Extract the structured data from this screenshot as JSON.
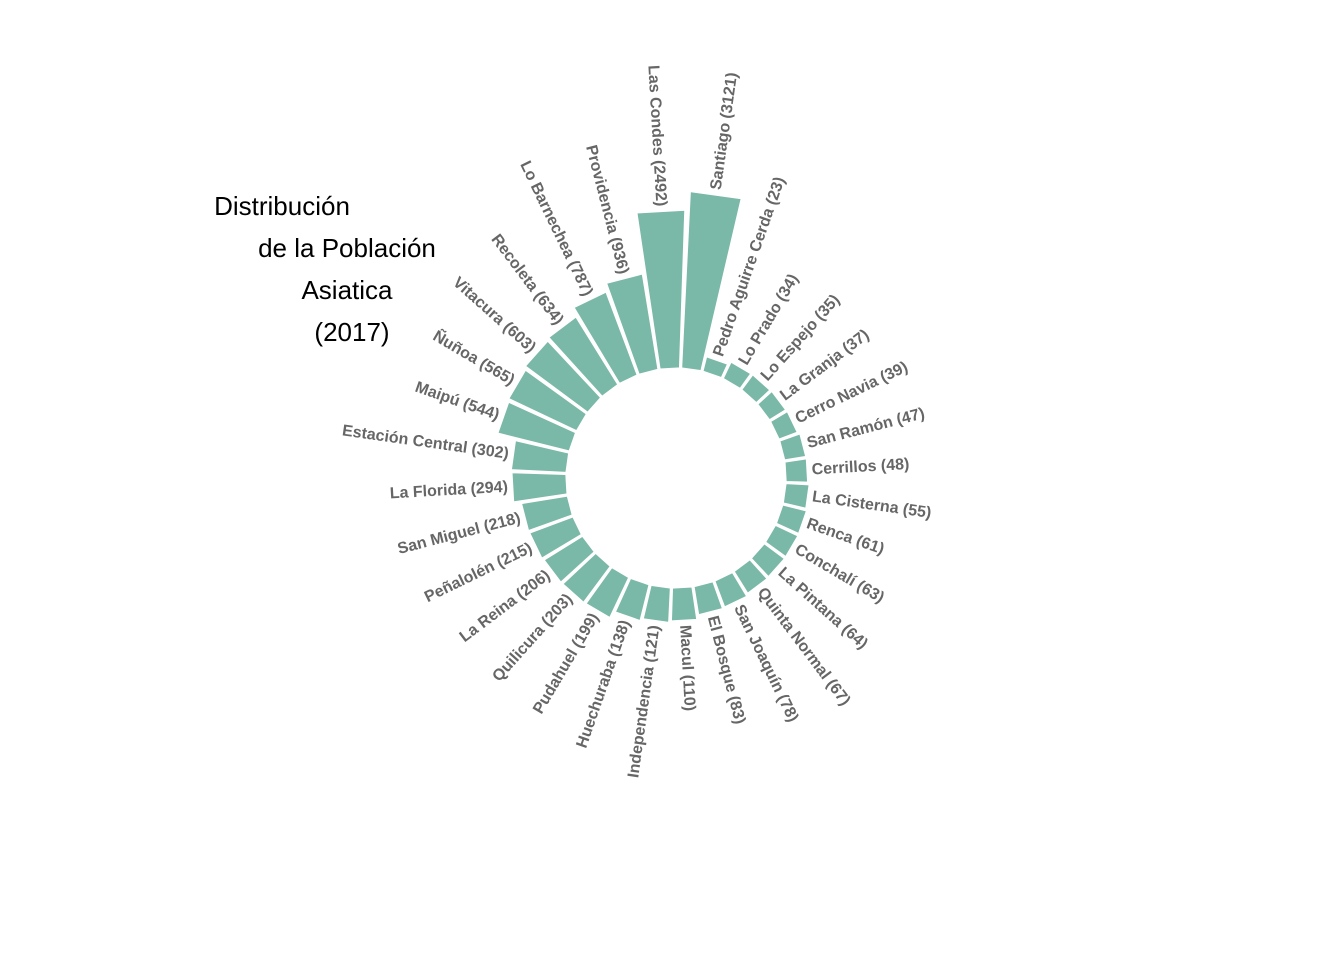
{
  "title_lines": [
    "Distribución",
    "de la Población",
    "Asiatica",
    "(2017)"
  ],
  "colors": {
    "bar": "#7ab8a8",
    "label": "#666666",
    "title": "#000000"
  },
  "chart_data": {
    "type": "bar",
    "layout": "circular",
    "title": "Distribución de la Población Asiatica (2017)",
    "categories": [
      "Santiago",
      "Las Condes",
      "Providencia",
      "Lo Barnechea",
      "Recoleta",
      "Vitacura",
      "Ñuñoa",
      "Maipú",
      "Estación Central",
      "La Florida",
      "San Miguel",
      "Peñalolén",
      "La Reina",
      "Quilicura",
      "Pudahuel",
      "Huechuraba",
      "Independencia",
      "Macul",
      "El Bosque",
      "San Joaquín",
      "Quinta Normal",
      "La Pintana",
      "Conchalí",
      "Renca",
      "La Cisterna",
      "Cerrillos",
      "San Ramón",
      "Cerro Navia",
      "La Granja",
      "Lo Espejo",
      "Lo Prado",
      "Pedro Aguirre Cerda"
    ],
    "values": [
      3121,
      2492,
      936,
      787,
      634,
      603,
      565,
      544,
      302,
      294,
      218,
      215,
      206,
      203,
      199,
      138,
      121,
      110,
      83,
      78,
      67,
      64,
      63,
      61,
      55,
      48,
      47,
      39,
      37,
      35,
      34,
      23
    ],
    "labels": [
      "Santiago (3121)",
      "Las Condes (2492)",
      "Providencia (936)",
      "Lo Barnechea (787)",
      "Recoleta (634)",
      "Vitacura (603)",
      "Ñuñoa (565)",
      "Maipú (544)",
      "Estación Central (302)",
      "La Florida (294)",
      "San Miguel (218)",
      "Peñalolén (215)",
      "La Reina (206)",
      "Quilicura (203)",
      "Pudahuel (199)",
      "Huechuraba (138)",
      "Independencia (121)",
      "Macul (110)",
      "El Bosque (83)",
      "San Joaquín (78)",
      "Quinta Normal (67)",
      "La Pintana (64)",
      "Conchalí (63)",
      "Renca (61)",
      "La Cisterna (55)",
      "Cerrillos (48)",
      "San Ramón (47)",
      "Cerro Navia (39)",
      "La Granja (37)",
      "Lo Espejo (35)",
      "Lo Prado (34)",
      "Pedro Aguirre Cerda (23)"
    ]
  }
}
